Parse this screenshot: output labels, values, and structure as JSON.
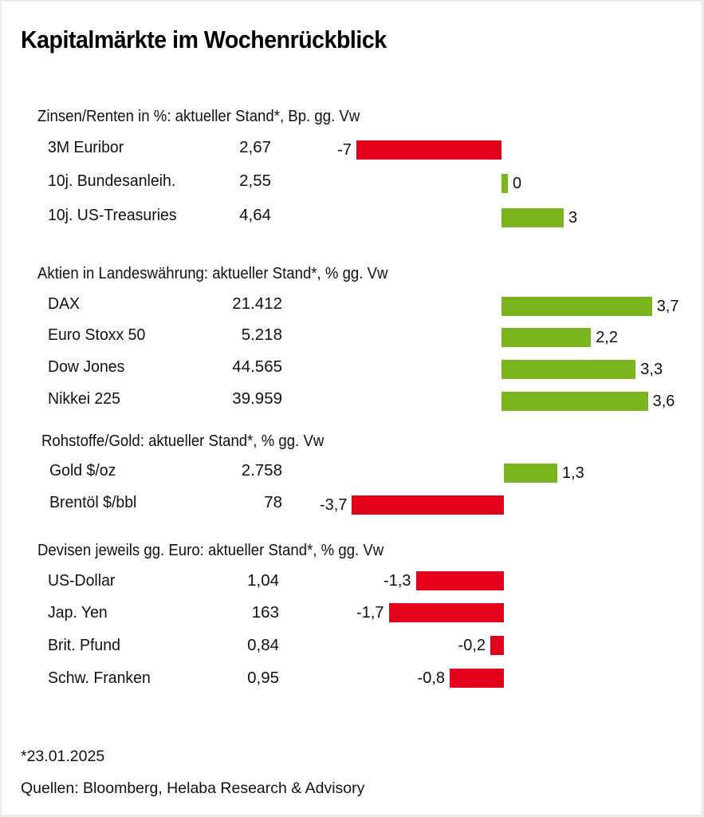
{
  "colors": {
    "positive": "#7ab51d",
    "negative": "#e2001a"
  },
  "chart_data": {
    "type": "bar",
    "title": "Kapitalmärkte im Wochenrückblick",
    "orientation": "horizontal",
    "sections": [
      {
        "heading": "Zinsen/Renten in %: aktueller Stand*, Bp. gg. Vw",
        "unit": "Bp.",
        "rows": [
          {
            "name": "3M Euribor",
            "level": "2,67",
            "change": -7,
            "change_label": "-7"
          },
          {
            "name": "10j. Bundesanleih.",
            "level": "2,55",
            "change": 0,
            "change_label": "0"
          },
          {
            "name": "10j. US-Treasuries",
            "level": "4,64",
            "change": 3,
            "change_label": "3"
          }
        ]
      },
      {
        "heading": "Aktien in Landeswährung: aktueller Stand*, % gg. Vw",
        "unit": "%",
        "rows": [
          {
            "name": "DAX",
            "level": "21.412",
            "change": 3.7,
            "change_label": "3,7"
          },
          {
            "name": "Euro Stoxx 50",
            "level": "5.218",
            "change": 2.2,
            "change_label": "2,2"
          },
          {
            "name": "Dow Jones",
            "level": "44.565",
            "change": 3.3,
            "change_label": "3,3"
          },
          {
            "name": "Nikkei 225",
            "level": "39.959",
            "change": 3.6,
            "change_label": "3,6"
          }
        ]
      },
      {
        "heading": "Rohstoffe/Gold: aktueller Stand*, % gg. Vw",
        "unit": "%",
        "rows": [
          {
            "name": "Gold $/oz",
            "level": "2.758",
            "change": 1.3,
            "change_label": "1,3"
          },
          {
            "name": "Brentöl $/bbl",
            "level": "78",
            "change": -3.7,
            "change_label": "-3,7"
          }
        ]
      },
      {
        "heading": "Devisen jeweils gg. Euro: aktueller Stand*, % gg. Vw",
        "unit": "%",
        "rows": [
          {
            "name": "US-Dollar",
            "level": "1,04",
            "change": -1.3,
            "change_label": "-1,3"
          },
          {
            "name": "Jap. Yen",
            "level": "163",
            "change": -1.7,
            "change_label": "-1,7"
          },
          {
            "name": "Brit. Pfund",
            "level": "0,84",
            "change": -0.2,
            "change_label": "-0,2"
          },
          {
            "name": "Schw. Franken",
            "level": "0,95",
            "change": -0.8,
            "change_label": "-0,8"
          }
        ]
      }
    ]
  },
  "footer": {
    "date_note": "*23.01.2025",
    "sources": "Quellen: Bloomberg, Helaba Research & Advisory"
  }
}
